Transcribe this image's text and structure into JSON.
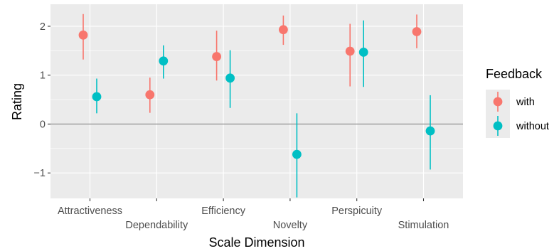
{
  "chart_data": {
    "type": "pointrange",
    "xlabel": "Scale Dimension",
    "ylabel": "Rating",
    "ylim": [
      -1.52,
      2.45
    ],
    "yticks": [
      -1,
      0,
      1,
      2
    ],
    "ytick_labels": [
      "−1",
      "0",
      "1",
      "2"
    ],
    "reference_line": 0,
    "grid": true,
    "legend": {
      "title": "Feedback",
      "position": "right"
    },
    "categories": [
      "Attractiveness",
      "Dependability",
      "Efficiency",
      "Novelty",
      "Perspicuity",
      "Stimulation"
    ],
    "series": [
      {
        "name": "with",
        "color": "#F8766D",
        "values": [
          1.82,
          0.6,
          1.38,
          1.93,
          1.49,
          1.89
        ],
        "lower": [
          1.32,
          0.23,
          0.89,
          1.62,
          0.77,
          1.55
        ],
        "upper": [
          2.25,
          0.95,
          1.91,
          2.22,
          2.05,
          2.24
        ]
      },
      {
        "name": "without",
        "color": "#00BFC4",
        "values": [
          0.56,
          1.29,
          0.94,
          -0.62,
          1.47,
          -0.14
        ],
        "lower": [
          0.22,
          0.93,
          0.33,
          -1.5,
          0.76,
          -0.93
        ],
        "upper": [
          0.93,
          1.61,
          1.51,
          0.22,
          2.12,
          0.59
        ]
      }
    ]
  }
}
